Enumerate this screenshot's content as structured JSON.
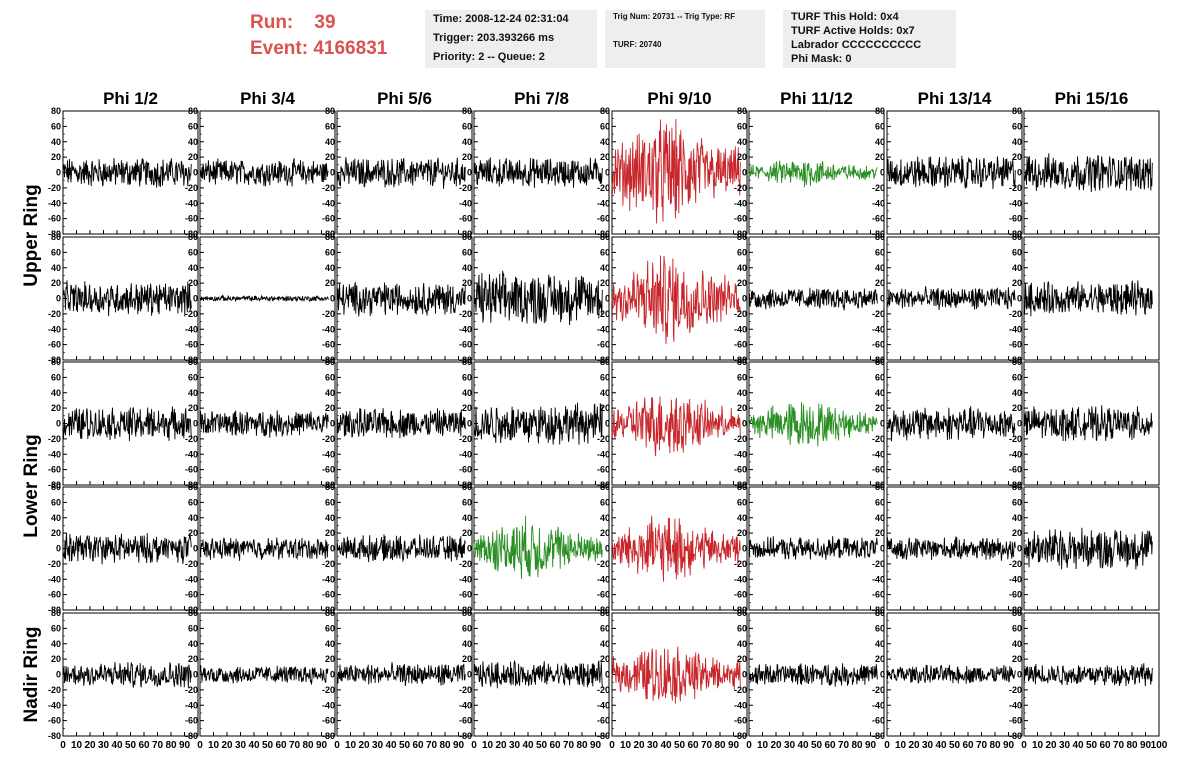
{
  "header": {
    "run_label": "Run:",
    "run_value": "39",
    "event_label": "Event:",
    "event_value": "4166831",
    "time": "Time: 2008-12-24 02:31:04",
    "trigger": "Trigger: 203.393266 ms",
    "priority": "Priority: 2 -- Queue: 2",
    "trig_num": "Trig Num: 20731 -- Trig Type: RF",
    "turf": "TURF: 20740",
    "turf_this_hold": "TURF This Hold: 0x4",
    "turf_active_holds": "TURF Active Holds: 0x7",
    "labrador": "Labrador CCCCCCCCCC",
    "phi_mask": "Phi Mask: 0"
  },
  "colors": {
    "normal": "#000000",
    "red": "#c8262b",
    "green": "#2a8f23",
    "run_text": "#d9534f",
    "panel_bg": "#eeeeee"
  },
  "chart_data": {
    "type": "line",
    "columns": [
      "Phi 1/2",
      "Phi 3/4",
      "Phi 5/6",
      "Phi 7/8",
      "Phi 9/10",
      "Phi 11/12",
      "Phi 13/14",
      "Phi 15/16"
    ],
    "ring_labels": [
      {
        "label": "Upper Ring",
        "rows": [
          0,
          1
        ]
      },
      {
        "label": "Lower Ring",
        "rows": [
          2,
          3
        ]
      },
      {
        "label": "Nadir Ring",
        "rows": [
          4
        ]
      }
    ],
    "xlim": [
      0,
      100
    ],
    "ylim": [
      -80,
      80
    ],
    "x_ticks": [
      0,
      10,
      20,
      30,
      40,
      50,
      60,
      70,
      80,
      90
    ],
    "x_tick_labels": [
      "0",
      "10",
      "20",
      "30",
      "40",
      "50",
      "60",
      "70",
      "80",
      "90"
    ],
    "x_last_tick_label": "100",
    "y_ticks": [
      80,
      60,
      40,
      20,
      0,
      -20,
      -40,
      -60,
      -80
    ],
    "y_tick_labels": [
      "80",
      "60",
      "40",
      "20",
      "0",
      "-20",
      "-40",
      "-60",
      "-80"
    ],
    "waveform_x_range": [
      0,
      95
    ],
    "waveform_samples": 260,
    "amplitude_grid": [
      [
        16,
        14,
        16,
        16,
        45,
        12,
        18,
        20
      ],
      [
        18,
        3,
        18,
        28,
        38,
        12,
        12,
        18
      ],
      [
        18,
        14,
        16,
        22,
        28,
        20,
        18,
        18
      ],
      [
        16,
        12,
        14,
        26,
        28,
        12,
        12,
        22
      ],
      [
        14,
        10,
        12,
        14,
        26,
        12,
        10,
        12
      ]
    ],
    "color_grid": [
      [
        "normal",
        "normal",
        "normal",
        "normal",
        "red",
        "green",
        "normal",
        "normal"
      ],
      [
        "normal",
        "normal",
        "normal",
        "normal",
        "red",
        "normal",
        "normal",
        "normal"
      ],
      [
        "normal",
        "normal",
        "normal",
        "normal",
        "red",
        "green",
        "normal",
        "normal"
      ],
      [
        "normal",
        "normal",
        "normal",
        "green",
        "red",
        "normal",
        "normal",
        "normal"
      ],
      [
        "normal",
        "normal",
        "normal",
        "normal",
        "red",
        "normal",
        "normal",
        "normal"
      ]
    ]
  }
}
